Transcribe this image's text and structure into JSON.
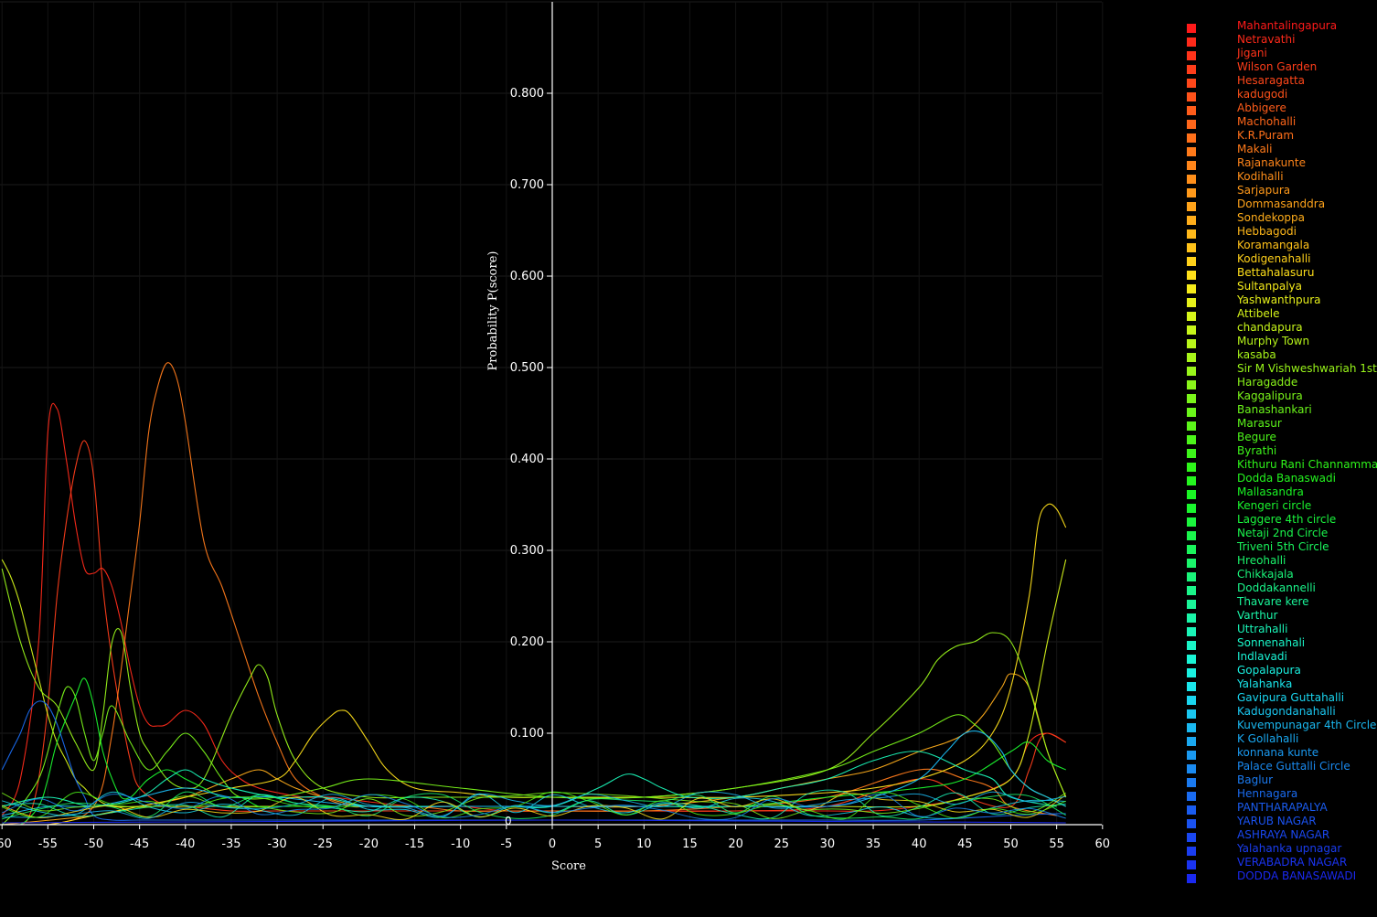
{
  "chart_data": {
    "type": "line",
    "title": "",
    "xlabel": "Score",
    "ylabel": "Probability P(score)",
    "xlim": [
      -60,
      60
    ],
    "ylim": [
      0,
      0.9
    ],
    "xticks": [
      "-60",
      "-55",
      "-50",
      "-45",
      "-40",
      "-35",
      "-30",
      "-25",
      "-20",
      "-15",
      "-10",
      "-5",
      "0",
      "5",
      "10",
      "15",
      "20",
      "25",
      "30",
      "35",
      "40",
      "45",
      "50",
      "55",
      "60"
    ],
    "yticks": [
      "0.100",
      "0.200",
      "0.300",
      "0.400",
      "0.500",
      "0.600",
      "0.700",
      "0.800"
    ],
    "origin_label": "0",
    "grid": true,
    "background": "#000000",
    "axis_color": "#ffffff",
    "legend_position": "right",
    "legend": [
      {
        "label": "Mahantalingapura",
        "color": "#ff1a1a"
      },
      {
        "label": "Netravathi",
        "color": "#ff2a1a"
      },
      {
        "label": "Jigani",
        "color": "#ff331a"
      },
      {
        "label": "Wilson Garden",
        "color": "#ff3d1a"
      },
      {
        "label": "Hesaragatta",
        "color": "#ff471a"
      },
      {
        "label": "kadugodi",
        "color": "#ff521a"
      },
      {
        "label": "Abbigere",
        "color": "#ff5c1a"
      },
      {
        "label": "Machohalli",
        "color": "#ff661a"
      },
      {
        "label": "K.R.Puram",
        "color": "#ff701a"
      },
      {
        "label": "Makali",
        "color": "#ff7a1a"
      },
      {
        "label": "Rajanakunte",
        "color": "#ff851a"
      },
      {
        "label": "Kodihalli",
        "color": "#ff8f1a"
      },
      {
        "label": "Sarjapura",
        "color": "#ff991a"
      },
      {
        "label": "Dommasanddra",
        "color": "#ffa31a"
      },
      {
        "label": "Sondekoppa",
        "color": "#ffad1a"
      },
      {
        "label": "Hebbagodi",
        "color": "#ffb81a"
      },
      {
        "label": "Koramangala",
        "color": "#ffc21a"
      },
      {
        "label": "Kodigenahalli",
        "color": "#ffd11a"
      },
      {
        "label": "Bettahalasuru",
        "color": "#ffe01a"
      },
      {
        "label": "Sultanpalya",
        "color": "#f5eb1a"
      },
      {
        "label": "Yashwanthpura",
        "color": "#e6f01a"
      },
      {
        "label": "Attibele",
        "color": "#d6f51a"
      },
      {
        "label": "chandapura",
        "color": "#c7f51a"
      },
      {
        "label": "Murphy Town",
        "color": "#b8f51a"
      },
      {
        "label": "kasaba",
        "color": "#a8f51a"
      },
      {
        "label": "Sir M Vishweshwariah 1st",
        "color": "#99f51a"
      },
      {
        "label": "Haragadde",
        "color": "#8af51a"
      },
      {
        "label": "Kaggalipura",
        "color": "#7af51a"
      },
      {
        "label": "Banashankari",
        "color": "#6bf51a"
      },
      {
        "label": "Marasur",
        "color": "#5cf51a"
      },
      {
        "label": "Begure",
        "color": "#4cf51a"
      },
      {
        "label": "Byrathi",
        "color": "#3df51a"
      },
      {
        "label": "Kithuru Rani Channamma",
        "color": "#2ef51a"
      },
      {
        "label": "Dodda Banaswadi",
        "color": "#24f51f"
      },
      {
        "label": "Mallasandra",
        "color": "#1af524"
      },
      {
        "label": "Kengeri circle",
        "color": "#1af52e"
      },
      {
        "label": "Laggere 4th circle",
        "color": "#1af53d"
      },
      {
        "label": "Netaji 2nd Circle",
        "color": "#1af54c"
      },
      {
        "label": "Triveni 5th Circle",
        "color": "#1af55c"
      },
      {
        "label": "Hreohalli",
        "color": "#1af56b"
      },
      {
        "label": "Chikkajala",
        "color": "#1af57a"
      },
      {
        "label": "Doddakannelli",
        "color": "#1af58a"
      },
      {
        "label": "Thavare kere",
        "color": "#1af599"
      },
      {
        "label": "Varthur",
        "color": "#1af5a8"
      },
      {
        "label": "Uttrahalli",
        "color": "#1af5b8"
      },
      {
        "label": "Sonnenahali",
        "color": "#1af5c7"
      },
      {
        "label": "Indlavadi",
        "color": "#1af5d6"
      },
      {
        "label": "Gopalapura",
        "color": "#1af0e0"
      },
      {
        "label": "Yalahanka",
        "color": "#1ae6eb"
      },
      {
        "label": "Gavipura Guttahalli",
        "color": "#1ad6f0"
      },
      {
        "label": "Kadugondanahalli",
        "color": "#1ac7f0"
      },
      {
        "label": "Kuvempunagar 4th Circle",
        "color": "#1ab8f0"
      },
      {
        "label": "K Gollahalli",
        "color": "#1aa8f0"
      },
      {
        "label": "konnana kunte",
        "color": "#1a99f0"
      },
      {
        "label": "Palace Guttalli Circle",
        "color": "#1a8af0"
      },
      {
        "label": "Baglur",
        "color": "#1a7af0"
      },
      {
        "label": "Hennagara",
        "color": "#1a6bf0"
      },
      {
        "label": "PANTHARAPALYA",
        "color": "#1a5cf0"
      },
      {
        "label": "YARUB NAGAR",
        "color": "#1a52f0"
      },
      {
        "label": "ASHRAYA NAGAR",
        "color": "#1a47f0"
      },
      {
        "label": "Yalahanka upnagar",
        "color": "#1a3df0"
      },
      {
        "label": "VERABADRA NAGAR",
        "color": "#1a33f0"
      },
      {
        "label": "DODDA BANASAWADI",
        "color": "#1a29f0"
      }
    ],
    "series": [
      {
        "name": "Mahantalingapura",
        "color": "#ff2a1a",
        "x": [
          -60,
          -58,
          -56,
          -55,
          -54,
          -53,
          -52,
          -51,
          -50,
          -49,
          -48,
          -47,
          -46,
          -45,
          -44,
          -43,
          -42,
          -40,
          -38,
          -36,
          -34,
          -32,
          -30,
          -27,
          -24,
          -20,
          -15,
          -10,
          -5,
          0,
          5,
          10,
          15,
          20,
          25,
          30,
          35,
          40,
          45,
          50,
          52,
          54,
          56
        ],
        "y": [
          0.01,
          0.05,
          0.2,
          0.43,
          0.455,
          0.4,
          0.33,
          0.28,
          0.275,
          0.28,
          0.26,
          0.22,
          0.17,
          0.13,
          0.11,
          0.108,
          0.11,
          0.125,
          0.11,
          0.07,
          0.05,
          0.04,
          0.035,
          0.03,
          0.03,
          0.025,
          0.02,
          0.02,
          0.015,
          0.015,
          0.015,
          0.015,
          0.015,
          0.015,
          0.015,
          0.015,
          0.015,
          0.02,
          0.03,
          0.05,
          0.09,
          0.1,
          0.09
        ]
      },
      {
        "name": "Netravathi",
        "color": "#ff3d1a",
        "x": [
          -60,
          -58,
          -57,
          -56,
          -55,
          -54,
          -53,
          -52,
          -51,
          -50,
          -49,
          -48,
          -47,
          -46,
          -45,
          -42,
          -40,
          -35,
          -30,
          -25,
          -20,
          -10,
          0,
          10,
          20,
          30,
          40,
          45,
          50,
          52,
          53,
          54,
          56
        ],
        "y": [
          0.0,
          0.0,
          0.01,
          0.05,
          0.13,
          0.25,
          0.33,
          0.39,
          0.42,
          0.38,
          0.26,
          0.18,
          0.12,
          0.07,
          0.04,
          0.02,
          0.02,
          0.015,
          0.015,
          0.015,
          0.015,
          0.015,
          0.015,
          0.015,
          0.015,
          0.02,
          0.05,
          0.03,
          0.02,
          0.06,
          0.09,
          0.1,
          0.09
        ]
      },
      {
        "name": "Hesaragatta",
        "color": "#ff7a1a",
        "x": [
          -60,
          -55,
          -50,
          -48,
          -46,
          -45,
          -44,
          -43,
          -42,
          -41,
          -40,
          -38,
          -36,
          -34,
          -32,
          -30,
          -28,
          -25,
          -22,
          -20,
          -15,
          -10,
          -5,
          0,
          10,
          20,
          30,
          40,
          45,
          48,
          50,
          55
        ],
        "y": [
          0.0,
          0.0,
          0.02,
          0.1,
          0.25,
          0.33,
          0.43,
          0.48,
          0.505,
          0.49,
          0.44,
          0.31,
          0.26,
          0.2,
          0.14,
          0.09,
          0.05,
          0.03,
          0.02,
          0.02,
          0.02,
          0.015,
          0.015,
          0.015,
          0.015,
          0.02,
          0.03,
          0.06,
          0.05,
          0.04,
          0.02,
          0.01
        ]
      },
      {
        "name": "Sondekoppa",
        "color": "#ffad1a",
        "x": [
          -60,
          -50,
          -45,
          -40,
          -35,
          -32,
          -30,
          -28,
          -25,
          -20,
          -10,
          0,
          10,
          20,
          25,
          30,
          35,
          40,
          43,
          45,
          47,
          49,
          50,
          52,
          54,
          56
        ],
        "y": [
          0.0,
          0.01,
          0.02,
          0.03,
          0.05,
          0.06,
          0.05,
          0.04,
          0.03,
          0.02,
          0.02,
          0.02,
          0.02,
          0.03,
          0.04,
          0.05,
          0.06,
          0.08,
          0.09,
          0.1,
          0.12,
          0.15,
          0.165,
          0.15,
          0.08,
          0.03
        ]
      },
      {
        "name": "Bettahalasuru",
        "color": "#ffe01a",
        "x": [
          -60,
          -55,
          -50,
          -45,
          -40,
          -35,
          -30,
          -28,
          -26,
          -24,
          -23,
          -22,
          -20,
          -18,
          -15,
          -10,
          -5,
          0,
          10,
          20,
          30,
          35,
          40,
          45,
          48,
          50,
          52,
          53,
          54,
          55,
          56
        ],
        "y": [
          0.0,
          0.0,
          0.01,
          0.02,
          0.03,
          0.04,
          0.05,
          0.07,
          0.1,
          0.12,
          0.125,
          0.12,
          0.09,
          0.06,
          0.04,
          0.035,
          0.03,
          0.03,
          0.03,
          0.03,
          0.035,
          0.04,
          0.05,
          0.07,
          0.1,
          0.15,
          0.25,
          0.33,
          0.35,
          0.345,
          0.325
        ]
      },
      {
        "name": "Attibele",
        "color": "#d6f51a",
        "x": [
          -60,
          -59,
          -58,
          -57,
          -56,
          -55,
          -54,
          -53,
          -52,
          -51,
          -50,
          -48,
          -45,
          -40,
          -35,
          -30,
          -20,
          -10,
          0,
          10,
          20,
          30,
          40,
          45,
          50,
          52,
          54,
          56
        ],
        "y": [
          0.29,
          0.27,
          0.24,
          0.2,
          0.16,
          0.12,
          0.09,
          0.07,
          0.05,
          0.04,
          0.03,
          0.02,
          0.02,
          0.02,
          0.02,
          0.02,
          0.02,
          0.02,
          0.02,
          0.02,
          0.02,
          0.02,
          0.02,
          0.03,
          0.05,
          0.1,
          0.2,
          0.29
        ]
      },
      {
        "name": "Sir M Vishweshwariah 1st",
        "color": "#99f51a",
        "x": [
          -60,
          -58,
          -56,
          -54,
          -52,
          -50,
          -49,
          -48,
          -47,
          -46,
          -45,
          -44,
          -42,
          -40,
          -38,
          -35,
          -33,
          -32,
          -31,
          -30,
          -28,
          -25,
          -20,
          -15,
          -10,
          0,
          10,
          20,
          30,
          35,
          40,
          42,
          44,
          46,
          48,
          50,
          52,
          54,
          56
        ],
        "y": [
          0.28,
          0.2,
          0.15,
          0.13,
          0.09,
          0.06,
          0.12,
          0.2,
          0.21,
          0.15,
          0.1,
          0.08,
          0.05,
          0.04,
          0.05,
          0.12,
          0.16,
          0.175,
          0.16,
          0.12,
          0.07,
          0.04,
          0.03,
          0.03,
          0.03,
          0.03,
          0.03,
          0.04,
          0.06,
          0.1,
          0.15,
          0.18,
          0.195,
          0.2,
          0.21,
          0.2,
          0.15,
          0.08,
          0.03
        ]
      },
      {
        "name": "Kaggalipura",
        "color": "#7af51a",
        "x": [
          -60,
          -58,
          -56,
          -55,
          -54,
          -53,
          -52,
          -51,
          -50,
          -49,
          -48,
          -46,
          -44,
          -42,
          -40,
          -38,
          -36,
          -34,
          -30,
          -25,
          -20,
          -10,
          0,
          10,
          20,
          30,
          35,
          40,
          44,
          46,
          48,
          50,
          52,
          54,
          56
        ],
        "y": [
          0.0,
          0.02,
          0.05,
          0.08,
          0.12,
          0.15,
          0.14,
          0.1,
          0.07,
          0.1,
          0.13,
          0.09,
          0.06,
          0.08,
          0.1,
          0.08,
          0.05,
          0.03,
          0.03,
          0.04,
          0.05,
          0.04,
          0.03,
          0.03,
          0.04,
          0.06,
          0.08,
          0.1,
          0.12,
          0.11,
          0.09,
          0.06,
          0.04,
          0.03,
          0.02
        ]
      },
      {
        "name": "Kengeri circle",
        "color": "#1af52e",
        "x": [
          -60,
          -58,
          -56,
          -55,
          -54,
          -52,
          -51,
          -50,
          -49,
          -48,
          -47,
          -46,
          -45,
          -44,
          -42,
          -40,
          -38,
          -36,
          -34,
          -32,
          -30,
          -25,
          -20,
          -15,
          -10,
          0,
          10,
          20,
          30,
          40,
          45,
          50,
          52,
          54,
          56
        ],
        "y": [
          0.0,
          0.0,
          0.02,
          0.05,
          0.09,
          0.14,
          0.16,
          0.13,
          0.08,
          0.05,
          0.03,
          0.03,
          0.04,
          0.05,
          0.06,
          0.05,
          0.04,
          0.03,
          0.03,
          0.02,
          0.02,
          0.02,
          0.02,
          0.02,
          0.02,
          0.02,
          0.02,
          0.02,
          0.03,
          0.04,
          0.05,
          0.08,
          0.09,
          0.07,
          0.06
        ]
      },
      {
        "name": "Uttrahalli",
        "color": "#1af5b8",
        "x": [
          -60,
          -55,
          -50,
          -45,
          -42,
          -40,
          -38,
          -35,
          -30,
          -25,
          -20,
          -15,
          -10,
          -5,
          0,
          5,
          8,
          10,
          12,
          15,
          20,
          25,
          30,
          35,
          40,
          45,
          48,
          50,
          55
        ],
        "y": [
          0.02,
          0.03,
          0.02,
          0.03,
          0.05,
          0.06,
          0.05,
          0.04,
          0.03,
          0.03,
          0.02,
          0.02,
          0.02,
          0.02,
          0.02,
          0.04,
          0.055,
          0.05,
          0.04,
          0.03,
          0.03,
          0.04,
          0.05,
          0.07,
          0.08,
          0.06,
          0.05,
          0.03,
          0.02
        ]
      },
      {
        "name": "Kuvempunagar 4th Circle",
        "color": "#1ab8f0",
        "x": [
          -60,
          -55,
          -50,
          -45,
          -40,
          -35,
          -30,
          -20,
          -10,
          0,
          10,
          20,
          30,
          35,
          40,
          43,
          45,
          47,
          49,
          50,
          52,
          54,
          56
        ],
        "y": [
          0.01,
          0.02,
          0.02,
          0.03,
          0.04,
          0.03,
          0.03,
          0.02,
          0.02,
          0.02,
          0.02,
          0.02,
          0.02,
          0.03,
          0.05,
          0.08,
          0.1,
          0.1,
          0.08,
          0.06,
          0.04,
          0.03,
          0.02
        ]
      },
      {
        "name": "Hennagara",
        "color": "#1a6bf0",
        "x": [
          -60,
          -59,
          -58,
          -57,
          -56,
          -55,
          -54,
          -53,
          -52,
          -51,
          -50,
          -48,
          -45,
          -40,
          -30,
          -20,
          -10,
          0,
          10,
          20,
          30,
          40,
          50,
          55,
          56
        ],
        "y": [
          0.06,
          0.08,
          0.1,
          0.125,
          0.135,
          0.13,
          0.11,
          0.08,
          0.05,
          0.03,
          0.01,
          0.005,
          0.005,
          0.005,
          0.005,
          0.005,
          0.005,
          0.005,
          0.005,
          0.005,
          0.005,
          0.005,
          0.01,
          0.012,
          0.012
        ]
      },
      {
        "name": "DODDA BANASAWADI",
        "color": "#1a29f0",
        "x": [
          -60,
          -40,
          -20,
          0,
          20,
          40,
          56
        ],
        "y": [
          0.002,
          0.003,
          0.004,
          0.005,
          0.004,
          0.003,
          0.002
        ]
      }
    ]
  }
}
